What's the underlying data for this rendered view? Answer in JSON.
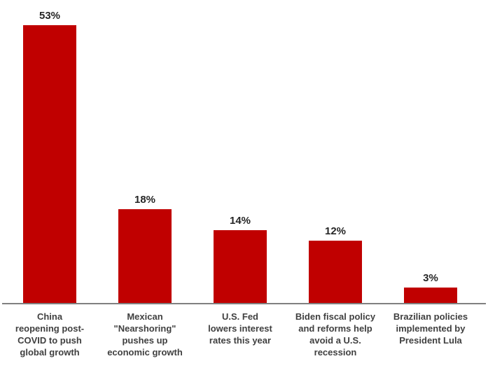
{
  "chart_data": {
    "type": "bar",
    "title": "",
    "xlabel": "",
    "ylabel": "",
    "ylim": [
      0,
      57
    ],
    "grid": false,
    "legend": false,
    "bar_color": "#c00000",
    "value_label_color": "#262626",
    "category_label_color": "#404040",
    "axis_line_color": "#808080",
    "categories": [
      "China reopening post-COVID to push global growth",
      "Mexican \"Nearshoring\" pushes up economic growth",
      "U.S. Fed lowers interest rates this year",
      "Biden fiscal policy and reforms help avoid a U.S. recession",
      "Brazilian policies implemented by President Lula"
    ],
    "category_lines": [
      [
        "China",
        "reopening post-",
        "COVID to push",
        "global growth"
      ],
      [
        "Mexican",
        "\"Nearshoring\"",
        "pushes up",
        "economic growth"
      ],
      [
        "U.S. Fed",
        "lowers interest",
        "rates this year"
      ],
      [
        "Biden fiscal policy",
        "and reforms help",
        "avoid a U.S.",
        "recession"
      ],
      [
        "Brazilian policies",
        "implemented by",
        "President Lula"
      ]
    ],
    "values": [
      53,
      18,
      14,
      12,
      3
    ],
    "value_labels": [
      "53%",
      "18%",
      "14%",
      "12%",
      "3%"
    ]
  }
}
